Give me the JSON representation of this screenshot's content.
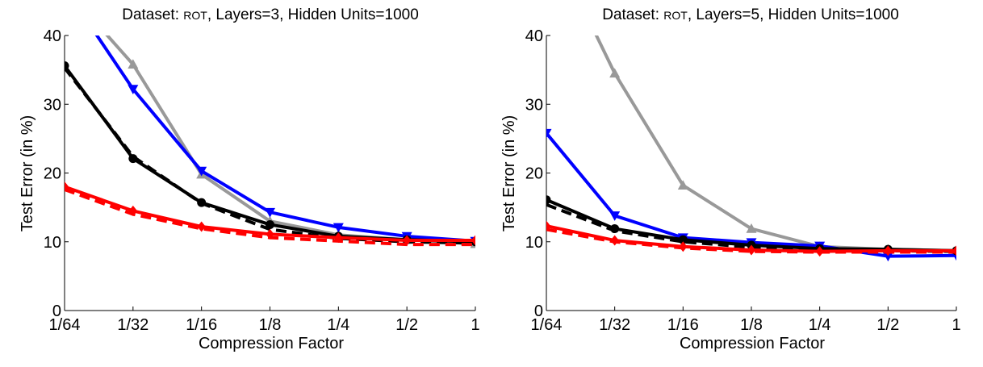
{
  "chart_data": [
    {
      "type": "line",
      "title": {
        "prefix": "Dataset: ",
        "dataset": "ROT",
        "suffix": ",  Layers=3,  Hidden Units=1000"
      },
      "xlabel": "Compression Factor",
      "ylabel": "Test Error (in %)",
      "categories": [
        "1/64",
        "1/32",
        "1/16",
        "1/8",
        "1/4",
        "1/2",
        "1"
      ],
      "ylim": [
        0,
        40
      ],
      "yticks": [
        "0",
        "10",
        "20",
        "30",
        "40"
      ],
      "grid": false,
      "legend": "none",
      "series": [
        {
          "color": "#999999",
          "marker": "triangle-up",
          "dash": false,
          "values": [
            47,
            35.8,
            19.8,
            13.0,
            11.0,
            10.3,
            9.7
          ]
        },
        {
          "color": "#0000ff",
          "marker": "triangle-down",
          "dash": false,
          "values": [
            47,
            32.2,
            20.3,
            14.3,
            12.1,
            10.8,
            10.1
          ]
        },
        {
          "color": "#000000",
          "marker": "circle",
          "dash": false,
          "values": [
            35.6,
            22.1,
            15.7,
            12.5,
            10.8,
            10.3,
            10.0
          ]
        },
        {
          "color": "#000000",
          "marker": "none",
          "dash": true,
          "values": [
            35.3,
            22.4,
            15.6,
            11.8,
            10.5,
            10.0,
            9.8
          ]
        },
        {
          "color": "#ff0000",
          "marker": "diamond",
          "dash": false,
          "values": [
            18.0,
            14.5,
            12.2,
            11.1,
            10.6,
            10.2,
            10.2
          ]
        },
        {
          "color": "#ff0000",
          "marker": "none",
          "dash": true,
          "values": [
            17.6,
            14.0,
            11.9,
            10.6,
            10.1,
            9.6,
            9.6
          ]
        }
      ]
    },
    {
      "type": "line",
      "title": {
        "prefix": "Dataset: ",
        "dataset": "ROT",
        "suffix": ",  Layers=5,  Hidden Units=1000"
      },
      "xlabel": "Compression Factor",
      "ylabel": "Test Error (in %)",
      "categories": [
        "1/64",
        "1/32",
        "1/16",
        "1/8",
        "1/4",
        "1/2",
        "1"
      ],
      "ylim": [
        0,
        40
      ],
      "yticks": [
        "0",
        "10",
        "20",
        "30",
        "40"
      ],
      "grid": false,
      "legend": "none",
      "series": [
        {
          "color": "#999999",
          "marker": "triangle-up",
          "dash": false,
          "values": [
            55,
            34.5,
            18.2,
            11.9,
            9.3,
            8.9,
            8.7
          ]
        },
        {
          "color": "#0000ff",
          "marker": "triangle-down",
          "dash": false,
          "values": [
            25.8,
            13.8,
            10.6,
            9.9,
            9.4,
            7.9,
            8.0
          ]
        },
        {
          "color": "#000000",
          "marker": "circle",
          "dash": false,
          "values": [
            16.1,
            11.9,
            10.3,
            9.5,
            9.0,
            8.9,
            8.7
          ]
        },
        {
          "color": "#000000",
          "marker": "none",
          "dash": true,
          "values": [
            15.4,
            11.6,
            10.0,
            9.2,
            8.8,
            8.7,
            8.6
          ]
        },
        {
          "color": "#ff0000",
          "marker": "diamond",
          "dash": false,
          "values": [
            12.3,
            10.2,
            9.3,
            8.8,
            8.6,
            8.7,
            8.7
          ]
        },
        {
          "color": "#ff0000",
          "marker": "none",
          "dash": true,
          "values": [
            11.8,
            10.0,
            9.1,
            8.6,
            8.5,
            8.5,
            8.5
          ]
        }
      ]
    }
  ]
}
